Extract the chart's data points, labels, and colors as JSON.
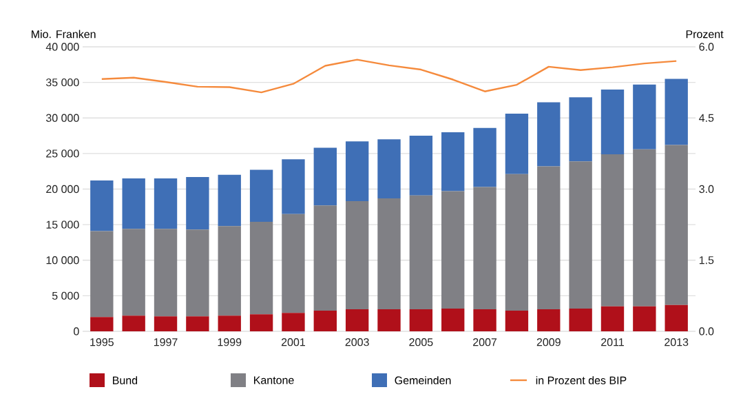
{
  "chart_data": {
    "type": "bar",
    "stacked": true,
    "ylabel": "Mio. Franken",
    "y2label": "Prozent",
    "categories": [
      "1995",
      null,
      "1997",
      null,
      "1999",
      null,
      "2001",
      null,
      "2003",
      null,
      "2005",
      null,
      "2007",
      null,
      "2009",
      null,
      "2011",
      null,
      "2013"
    ],
    "series": [
      {
        "name": "Bund",
        "color": "#b0101a",
        "values": [
          2000,
          2200,
          2100,
          2100,
          2200,
          2400,
          2600,
          2900,
          3100,
          3100,
          3100,
          3200,
          3100,
          2900,
          3100,
          3200,
          3500,
          3500,
          3700
        ]
      },
      {
        "name": "Kantone",
        "color": "#808085",
        "values": [
          12100,
          12200,
          12300,
          12200,
          12600,
          13000,
          13900,
          14800,
          15200,
          15600,
          16000,
          16500,
          17200,
          19200,
          20100,
          20700,
          21400,
          22100,
          22500
        ]
      },
      {
        "name": "Gemeinden",
        "color": "#3f6fb6",
        "values": [
          7100,
          7100,
          7100,
          7400,
          7200,
          7300,
          7700,
          8100,
          8400,
          8300,
          8400,
          8300,
          8300,
          8500,
          9000,
          9000,
          9100,
          9100,
          9300
        ]
      },
      {
        "name": "in Prozent des BIP",
        "type": "line",
        "axis": "y2",
        "color": "#f58a3c",
        "values": [
          5.32,
          5.35,
          5.26,
          5.16,
          5.15,
          5.04,
          5.22,
          5.6,
          5.73,
          5.61,
          5.52,
          5.31,
          5.06,
          5.2,
          5.58,
          5.51,
          5.57,
          5.65,
          5.7
        ]
      }
    ],
    "ylim": [
      0,
      40000
    ],
    "yticks": [
      {
        "value": 0,
        "label": "0"
      },
      {
        "value": 5000,
        "label": "5 000"
      },
      {
        "value": 10000,
        "label": "10 000"
      },
      {
        "value": 15000,
        "label": "15 000"
      },
      {
        "value": 20000,
        "label": "20 000"
      },
      {
        "value": 25000,
        "label": "25 000"
      },
      {
        "value": 30000,
        "label": "30 000"
      },
      {
        "value": 35000,
        "label": "35 000"
      },
      {
        "value": 40000,
        "label": "40 000"
      }
    ],
    "y2lim": [
      0,
      6
    ],
    "y2ticks": [
      {
        "value": 0,
        "label": "0.0"
      },
      {
        "value": 1.5,
        "label": "1.5"
      },
      {
        "value": 3,
        "label": "3.0"
      },
      {
        "value": 4.5,
        "label": "4.5"
      },
      {
        "value": 6,
        "label": "6.0"
      }
    ],
    "grid": "y",
    "legend": "bottom"
  }
}
